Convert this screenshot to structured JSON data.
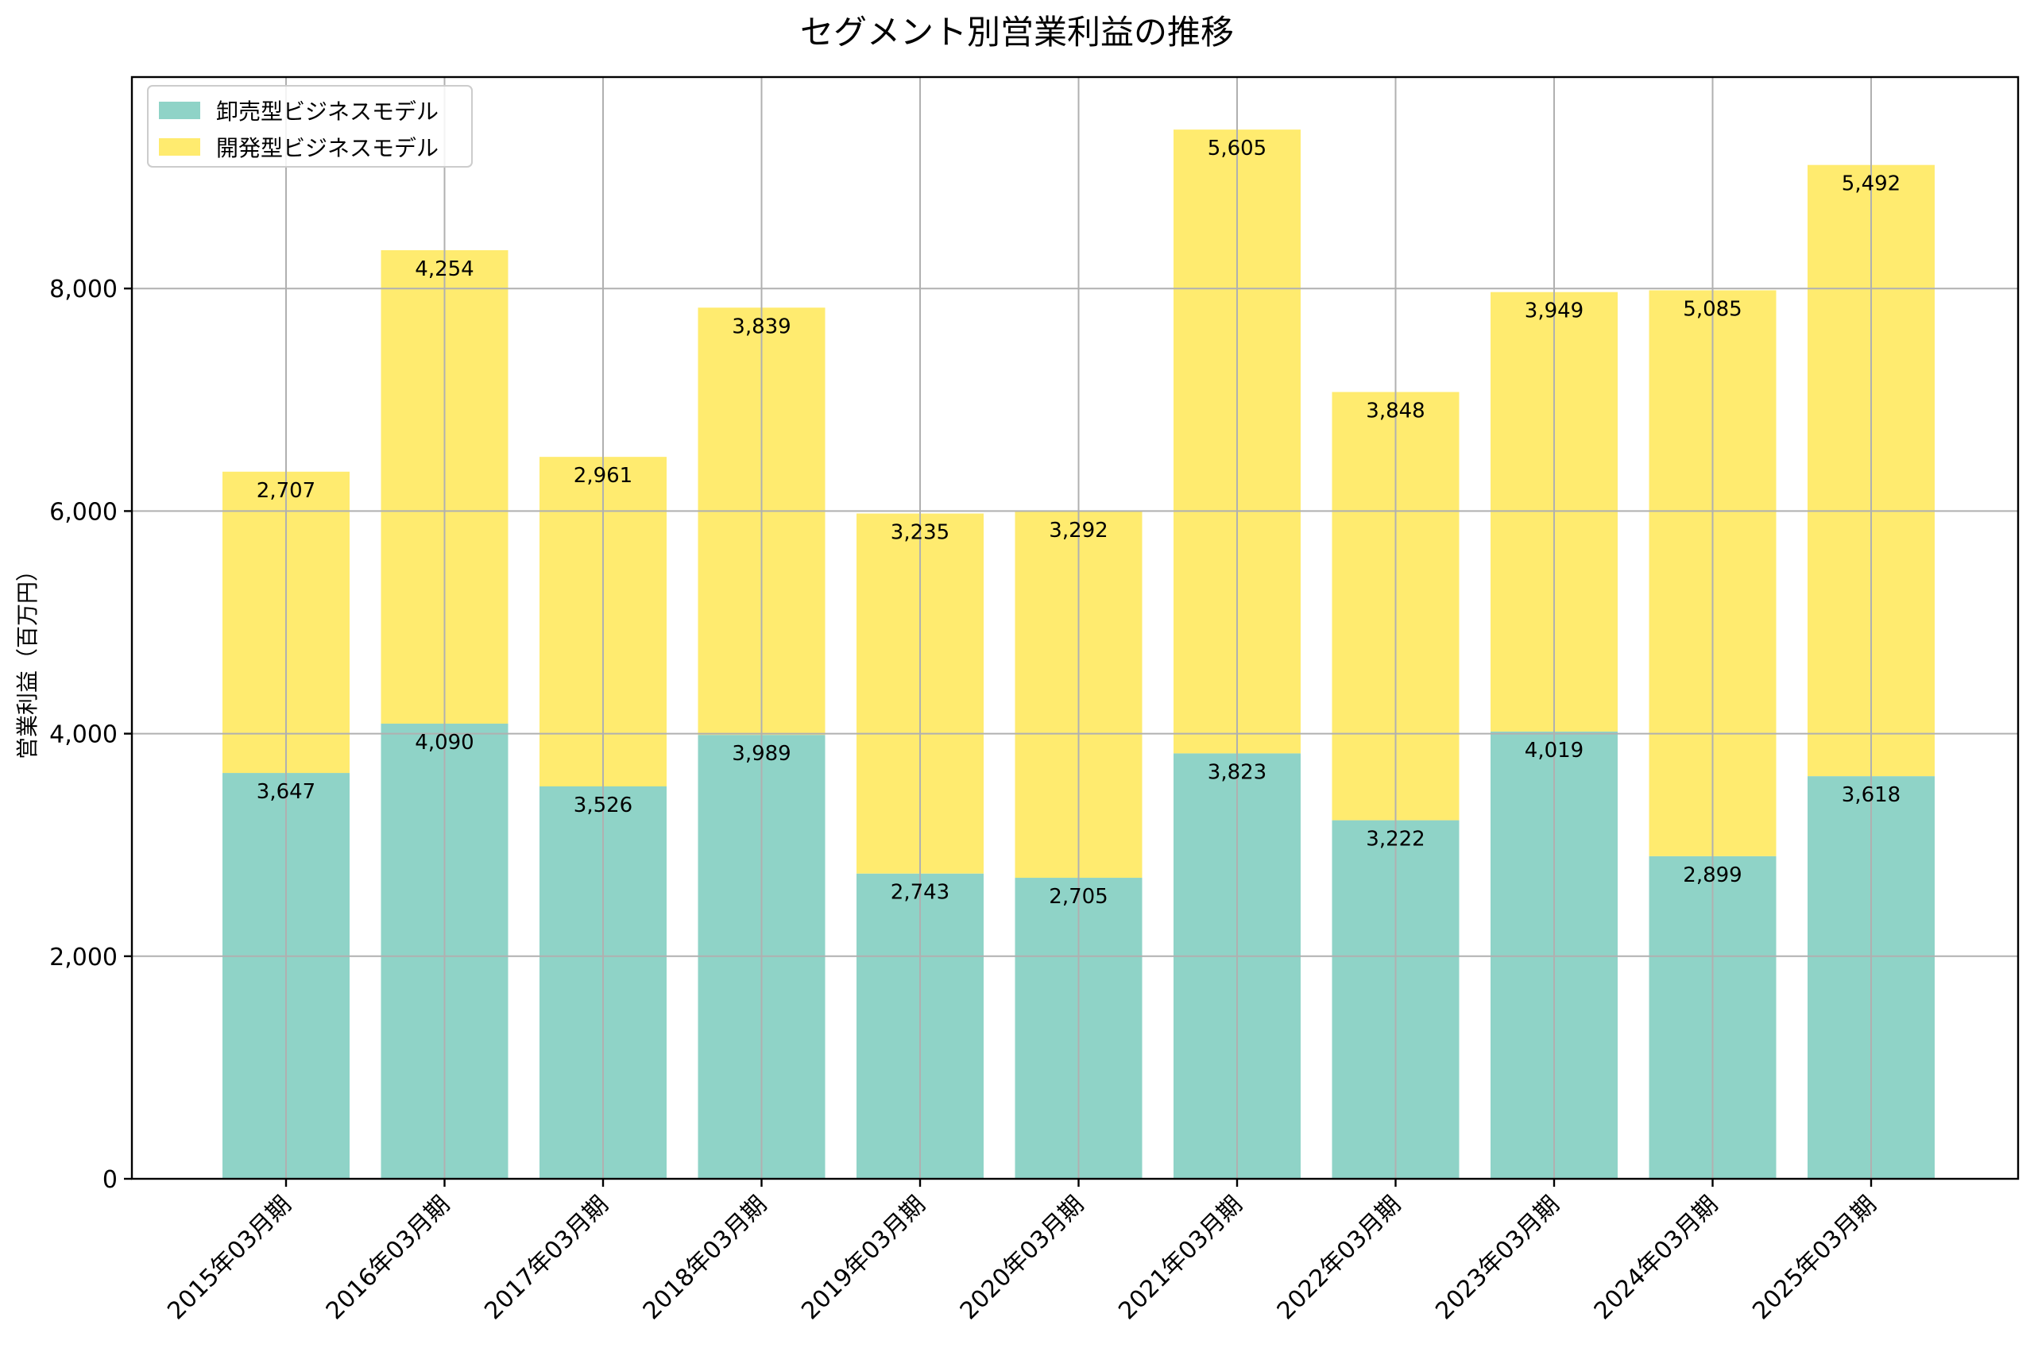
{
  "chart_data": {
    "type": "bar",
    "stacked": true,
    "title": "セグメント別営業利益の推移",
    "xlabel": "",
    "ylabel": "営業利益（百万円）",
    "ylim": [
      0,
      9900
    ],
    "yticks": [
      0,
      2000,
      4000,
      6000,
      8000
    ],
    "ytick_labels": [
      "0",
      "2,000",
      "4,000",
      "6,000",
      "8,000"
    ],
    "grid": true,
    "legend_position": "top-left",
    "categories": [
      "2015年03月期",
      "2016年03月期",
      "2017年03月期",
      "2018年03月期",
      "2019年03月期",
      "2020年03月期",
      "2021年03月期",
      "2022年03月期",
      "2023年03月期",
      "2024年03月期",
      "2025年03月期"
    ],
    "series": [
      {
        "name": "卸売型ビジネスモデル",
        "color": "#8fd3c7",
        "values": [
          3647,
          4090,
          3526,
          3989,
          2743,
          2705,
          3823,
          3222,
          4019,
          2899,
          3618
        ],
        "labels": [
          "3,647",
          "4,090",
          "3,526",
          "3,989",
          "2,743",
          "2,705",
          "3,823",
          "3,222",
          "4,019",
          "2,899",
          "3,618"
        ]
      },
      {
        "name": "開発型ビジネスモデル",
        "color": "#ffeb6f",
        "values": [
          2707,
          4254,
          2961,
          3839,
          3235,
          3292,
          5605,
          3848,
          3949,
          5085,
          5492
        ],
        "labels": [
          "2,707",
          "4,254",
          "2,961",
          "3,839",
          "3,235",
          "3,292",
          "5,605",
          "3,848",
          "3,949",
          "5,085",
          "5,492"
        ]
      }
    ]
  }
}
